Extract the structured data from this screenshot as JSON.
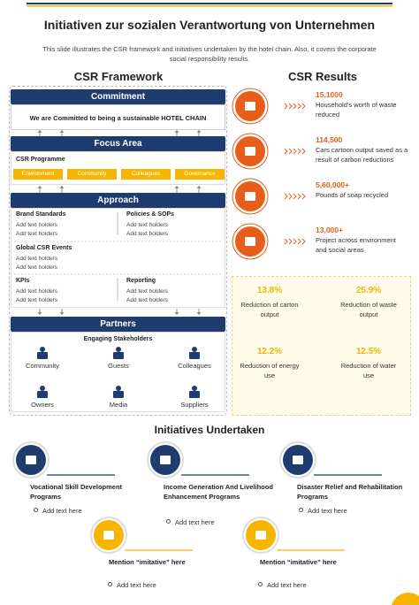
{
  "title": "Initiativen zur sozialen Verantwortung von Unternehmen",
  "subtitle": "This slide illustrates the CSR framework and initiatives undertaken by the hotel chain. Also, it covers the corporate social responsibility results.",
  "framework": {
    "heading": "CSR Framework",
    "commitment": {
      "title": "Commitment",
      "statement": "We are Committed to being a sustainable HOTEL CHAIN"
    },
    "focus_area": {
      "title": "Focus Area",
      "label": "CSR Programme",
      "tags": [
        "Environment",
        "Community",
        "Colleagues",
        "Governance"
      ]
    },
    "approach": {
      "title": "Approach",
      "items": [
        {
          "title": "Brand Standards",
          "lines": [
            "Add text holders",
            "Add text holders"
          ]
        },
        {
          "title": "Policies & SOPs",
          "lines": [
            "Add text holders",
            "Add text holders"
          ]
        },
        {
          "title": "Global CSR Events",
          "lines": [
            "Add text holders",
            "Add text holders"
          ]
        },
        {
          "title": "KPIs",
          "lines": [
            "Add text holders",
            "Add text holders"
          ]
        },
        {
          "title": "Reporting",
          "lines": [
            "Add text holders",
            "Add text holders"
          ]
        }
      ]
    },
    "partners": {
      "title": "Partners",
      "label": "Engaging Stakeholders",
      "stakeholders": [
        "Community",
        "Guests",
        "Colleagues",
        "Owners",
        "Media",
        "Suppliers"
      ]
    }
  },
  "results": {
    "heading": "CSR Results",
    "items": [
      {
        "value": "15,1000",
        "text": "Household’s worth of waste reduced"
      },
      {
        "value": "114,500",
        "text": "Cars cartoon output saved as a result of carbon reductions"
      },
      {
        "value": "5,60,000+",
        "text": "Pounds of soap recycled"
      },
      {
        "value": "13,000+",
        "text": "Project across environment and social areas"
      }
    ],
    "reductions": [
      {
        "value": "13.8%",
        "text": "Reduction of carton output"
      },
      {
        "value": "25.9%",
        "text": "Reduction of waste output"
      },
      {
        "value": "12.2%",
        "text": "Reduction of energy use"
      },
      {
        "value": "12.5%",
        "text": "Reduction of water use"
      }
    ]
  },
  "initiatives": {
    "heading": "Initiatives Undertaken",
    "items": [
      {
        "title": "Vocational Skill Development Programs",
        "bullet": "Add text here"
      },
      {
        "title": "Income Generation And Livelihood Enhancement Programs",
        "bullet": "Add text here"
      },
      {
        "title": "Disaster Relief and Rehabilitation Programs",
        "bullet": "Add text here"
      },
      {
        "title": "Mention “imitative” here",
        "bullet": "Add text here"
      },
      {
        "title": "Mention “imitative” here",
        "bullet": "Add text here"
      }
    ]
  }
}
